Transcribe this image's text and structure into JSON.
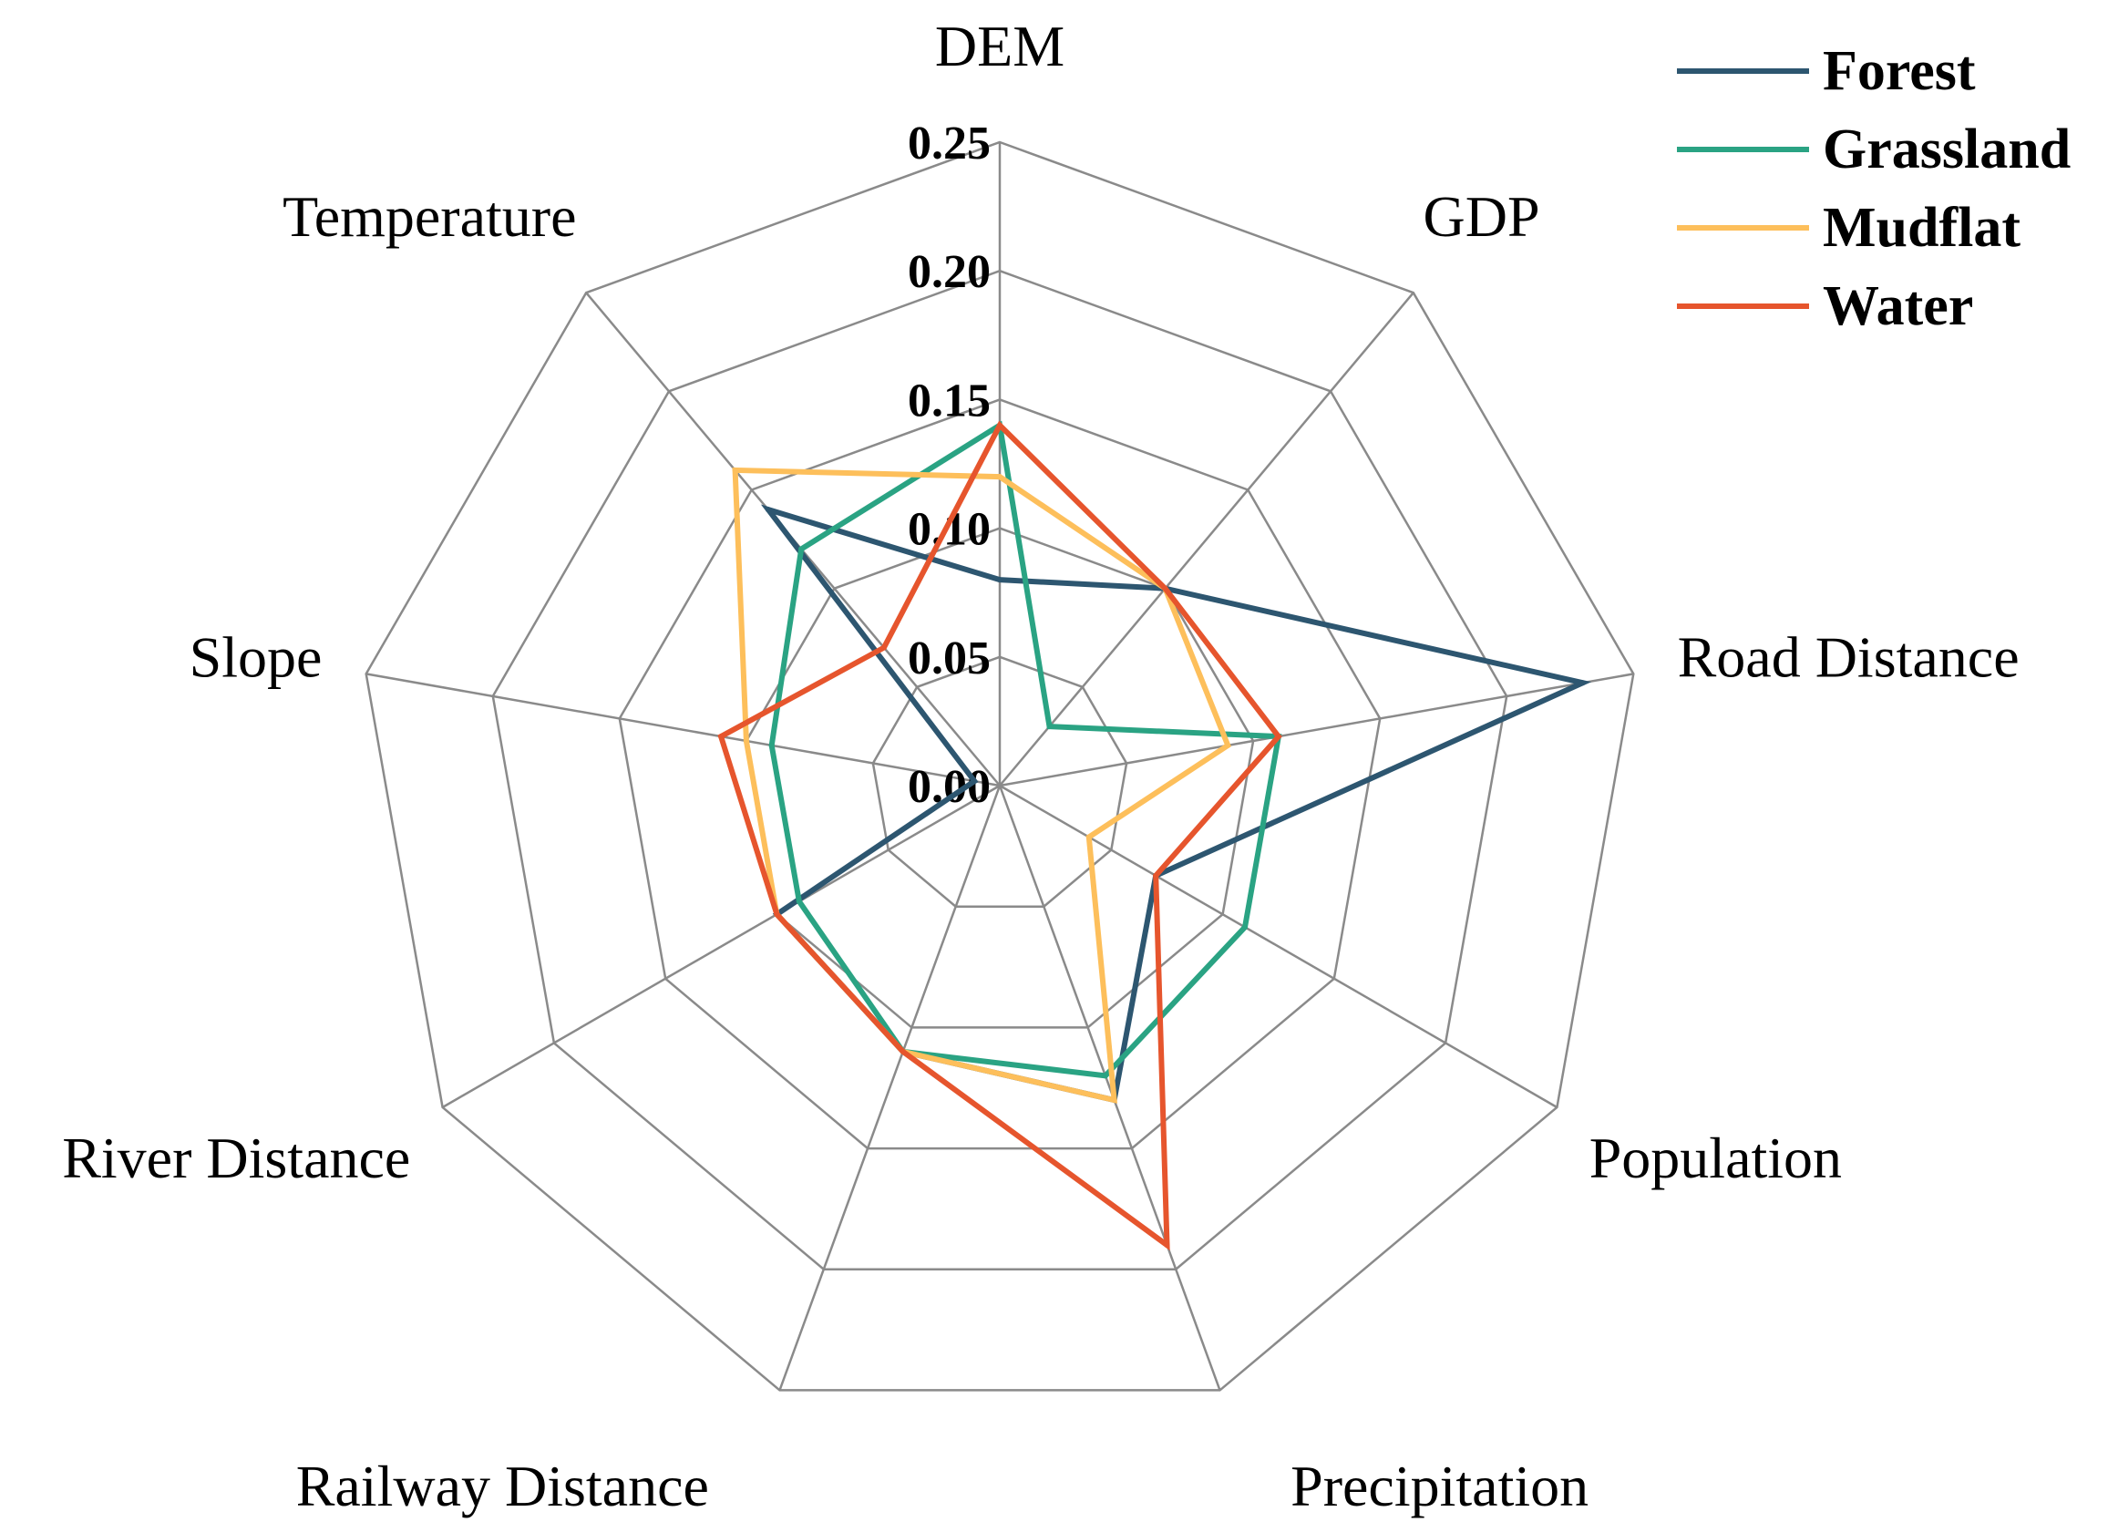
{
  "chart_data": {
    "type": "radar",
    "axes": [
      "DEM",
      "GDP",
      "Road Distance",
      "Population",
      "Precipitation",
      "Railway Distance",
      "River Distance",
      "Slope",
      "Temperature"
    ],
    "rlim": [
      0,
      0.25
    ],
    "ticks": [
      "0.00",
      "0.05",
      "0.10",
      "0.15",
      "0.20",
      "0.25"
    ],
    "tick_values": [
      0,
      0.05,
      0.1,
      0.15,
      0.2,
      0.25
    ],
    "legend_position": "top-right",
    "series": [
      {
        "name": "Forest",
        "color": "#2d5670",
        "values": [
          0.08,
          0.1,
          0.23,
          0.07,
          0.13,
          0.11,
          0.1,
          0.01,
          0.14
        ]
      },
      {
        "name": "Grassland",
        "color": "#2aa383",
        "values": [
          0.14,
          0.03,
          0.11,
          0.11,
          0.12,
          0.11,
          0.09,
          0.09,
          0.12
        ]
      },
      {
        "name": "Mudflat",
        "color": "#fdbf5b",
        "values": [
          0.12,
          0.1,
          0.09,
          0.04,
          0.13,
          0.11,
          0.1,
          0.1,
          0.16
        ]
      },
      {
        "name": "Water",
        "color": "#e6552d",
        "values": [
          0.14,
          0.1,
          0.11,
          0.07,
          0.19,
          0.11,
          0.1,
          0.11,
          0.07
        ]
      }
    ]
  }
}
